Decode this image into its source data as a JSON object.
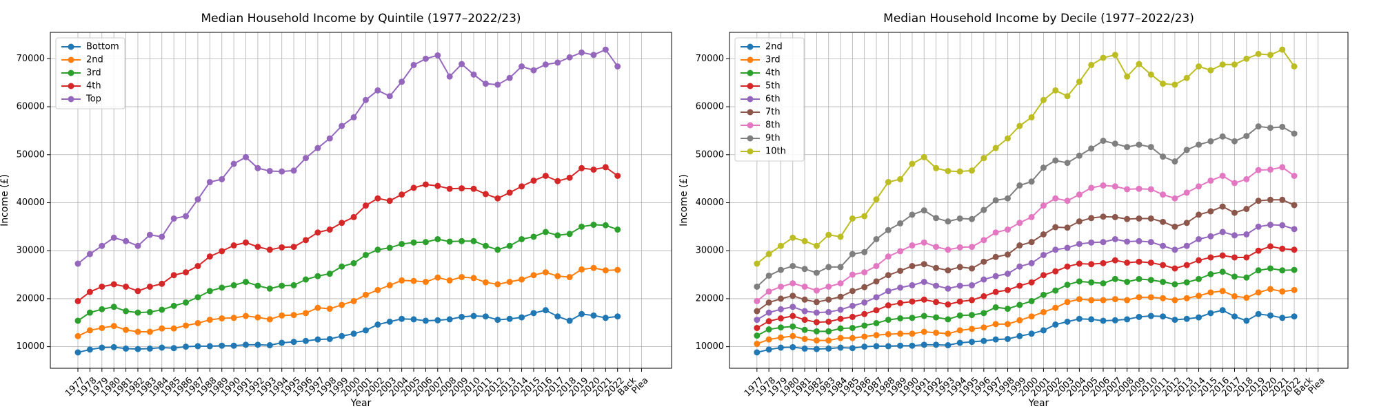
{
  "chart_data": [
    {
      "type": "line",
      "title": "Median Household Income by Quintile (1977–2022/23)",
      "xlabel": "Year",
      "ylabel": "Income (£)",
      "categories": [
        "1977",
        "1978",
        "1979",
        "1980",
        "1981",
        "1982",
        "1983",
        "1984",
        "1985",
        "1986",
        "1987",
        "1988",
        "1989",
        "1990",
        "1991",
        "1992",
        "1993",
        "1994",
        "1995",
        "1996",
        "1997",
        "1998",
        "1999",
        "2000",
        "2001",
        "2002",
        "2003",
        "2004",
        "2005",
        "2006",
        "2007",
        "2008",
        "2009",
        "2010",
        "2011",
        "2012",
        "2013",
        "2014",
        "2015",
        "2016",
        "2017",
        "2018",
        "2019",
        "2020",
        "2021",
        "2022",
        "Back",
        "Plea"
      ],
      "ylim": [
        5500,
        75500
      ],
      "yticks": [
        10000,
        20000,
        30000,
        40000,
        50000,
        60000,
        70000
      ],
      "grid": true,
      "legend": "upper left",
      "series": [
        {
          "name": "Bottom",
          "color": "#1f77b4",
          "values": [
            8800,
            9400,
            9800,
            9900,
            9600,
            9500,
            9600,
            9800,
            9700,
            10000,
            10100,
            10100,
            10200,
            10200,
            10400,
            10400,
            10300,
            10800,
            11000,
            11200,
            11500,
            11600,
            12200,
            12700,
            13400,
            14600,
            15200,
            15800,
            15700,
            15400,
            15500,
            15700,
            16200,
            16400,
            16300,
            15600,
            15800,
            16100,
            17000,
            17600,
            16300,
            15400,
            16800,
            16500,
            16000,
            16300,
            null,
            null
          ]
        },
        {
          "name": "2nd",
          "color": "#ff7f0e",
          "values": [
            12200,
            13400,
            13900,
            14300,
            13500,
            13100,
            13100,
            13800,
            13800,
            14400,
            14900,
            15600,
            15900,
            16000,
            16400,
            16100,
            15700,
            16500,
            16600,
            17000,
            18100,
            17900,
            18700,
            19500,
            20800,
            21800,
            22800,
            23800,
            23700,
            23500,
            24400,
            23800,
            24500,
            24300,
            23400,
            23000,
            23500,
            24000,
            24900,
            25500,
            24700,
            24500,
            26100,
            26400,
            25900,
            26000,
            null,
            null
          ]
        },
        {
          "name": "3rd",
          "color": "#2ca02c",
          "values": [
            15400,
            17100,
            17800,
            18300,
            17400,
            17100,
            17200,
            17700,
            18500,
            19200,
            20300,
            21600,
            22300,
            22800,
            23500,
            22700,
            22100,
            22700,
            22800,
            24000,
            24700,
            25200,
            26700,
            27400,
            29100,
            30200,
            30600,
            31400,
            31700,
            31800,
            32400,
            31900,
            32000,
            32000,
            31000,
            30200,
            31000,
            32400,
            32900,
            33900,
            33200,
            33500,
            35000,
            35400,
            35300,
            34400,
            null,
            null
          ]
        },
        {
          "name": "4th",
          "color": "#d62728",
          "values": [
            19500,
            21400,
            22500,
            23000,
            22500,
            21600,
            22500,
            23100,
            24900,
            25500,
            26800,
            28800,
            29900,
            31100,
            31700,
            30800,
            30200,
            30700,
            30800,
            32200,
            33800,
            34400,
            35800,
            37000,
            39400,
            40900,
            40400,
            41700,
            43100,
            43800,
            43500,
            42900,
            43000,
            42900,
            41800,
            40900,
            42100,
            43400,
            44600,
            45600,
            44500,
            45200,
            47200,
            46900,
            47400,
            45600,
            null,
            null
          ]
        },
        {
          "name": "Top",
          "color": "#9467bd",
          "values": [
            27300,
            29300,
            31000,
            32700,
            32000,
            31000,
            33300,
            32900,
            36700,
            37200,
            40700,
            44300,
            44900,
            48100,
            49500,
            47200,
            46600,
            46500,
            46700,
            49300,
            51400,
            53400,
            56000,
            57800,
            61400,
            63400,
            62200,
            65200,
            68700,
            70000,
            70700,
            66300,
            68900,
            66700,
            64800,
            64600,
            66000,
            68400,
            67600,
            68800,
            69200,
            70300,
            71300,
            70800,
            71900,
            68400,
            null,
            null
          ]
        }
      ]
    },
    {
      "type": "line",
      "title": "Median Household Income by Decile (1977–2022/23)",
      "xlabel": "Year",
      "ylabel": "Income (£)",
      "categories": [
        "1977",
        "1978",
        "1979",
        "1980",
        "1981",
        "1982",
        "1983",
        "1984",
        "1985",
        "1986",
        "1987",
        "1988",
        "1989",
        "1990",
        "1991",
        "1992",
        "1993",
        "1994",
        "1995",
        "1996",
        "1997",
        "1998",
        "1999",
        "2000",
        "2001",
        "2002",
        "2003",
        "2004",
        "2005",
        "2006",
        "2007",
        "2008",
        "2009",
        "2010",
        "2011",
        "2012",
        "2013",
        "2014",
        "2015",
        "2016",
        "2017",
        "2018",
        "2019",
        "2020",
        "2021",
        "2022",
        "Back",
        "Plea"
      ],
      "ylim": [
        5500,
        75500
      ],
      "yticks": [
        10000,
        20000,
        30000,
        40000,
        50000,
        60000,
        70000
      ],
      "grid": true,
      "legend": "upper left",
      "series": [
        {
          "name": "2nd",
          "color": "#1f77b4",
          "values": [
            8800,
            9400,
            9800,
            9900,
            9600,
            9500,
            9600,
            9800,
            9700,
            10000,
            10100,
            10100,
            10200,
            10200,
            10400,
            10400,
            10300,
            10800,
            11000,
            11200,
            11500,
            11600,
            12200,
            12700,
            13400,
            14600,
            15200,
            15800,
            15700,
            15400,
            15500,
            15700,
            16200,
            16400,
            16300,
            15600,
            15800,
            16100,
            17000,
            17600,
            16300,
            15400,
            16800,
            16500,
            16000,
            16300,
            null,
            null
          ]
        },
        {
          "name": "3rd",
          "color": "#ff7f0e",
          "values": [
            10600,
            11500,
            11900,
            12200,
            11600,
            11300,
            11300,
            11800,
            11800,
            12100,
            12400,
            12600,
            12700,
            12700,
            13100,
            12900,
            12700,
            13400,
            13700,
            14000,
            14700,
            14700,
            15500,
            16300,
            17200,
            18100,
            19300,
            19900,
            19700,
            19700,
            19900,
            19700,
            20300,
            20300,
            20100,
            19700,
            20100,
            20600,
            21300,
            21600,
            20500,
            20200,
            21300,
            22000,
            21500,
            21800,
            null,
            null
          ]
        },
        {
          "name": "4th",
          "color": "#2ca02c",
          "values": [
            12300,
            13600,
            14000,
            14200,
            13500,
            13200,
            13200,
            13800,
            13900,
            14400,
            14900,
            15600,
            15900,
            16000,
            16400,
            16100,
            15700,
            16500,
            16600,
            17000,
            18200,
            17900,
            18700,
            19500,
            20800,
            21700,
            22900,
            23600,
            23400,
            23200,
            24100,
            23500,
            24100,
            23900,
            23500,
            23000,
            23400,
            24100,
            25100,
            25600,
            24600,
            24400,
            25900,
            26300,
            25900,
            26000,
            null,
            null
          ]
        },
        {
          "name": "5th",
          "color": "#d62728",
          "values": [
            13900,
            15300,
            15900,
            16400,
            15600,
            15100,
            15200,
            15800,
            16200,
            16800,
            17600,
            18600,
            19100,
            19400,
            19800,
            19300,
            18800,
            19400,
            19700,
            20500,
            21400,
            21800,
            22700,
            23400,
            24900,
            25700,
            26700,
            27300,
            27200,
            27400,
            28000,
            27500,
            27700,
            27500,
            27000,
            26300,
            27000,
            28000,
            28600,
            29000,
            28600,
            28600,
            30000,
            30900,
            30400,
            30200,
            null,
            null
          ]
        },
        {
          "name": "6th",
          "color": "#9467bd",
          "values": [
            15600,
            17100,
            17800,
            18300,
            17400,
            17100,
            17200,
            17700,
            18500,
            19200,
            20300,
            21600,
            22300,
            22800,
            23500,
            22700,
            22100,
            22700,
            22800,
            24000,
            24700,
            25200,
            26700,
            27400,
            29100,
            30200,
            30600,
            31400,
            31700,
            31800,
            32400,
            31900,
            32000,
            31800,
            31000,
            30200,
            31000,
            32400,
            33000,
            33900,
            33200,
            33400,
            35000,
            35400,
            35300,
            34500,
            null,
            null
          ]
        },
        {
          "name": "7th",
          "color": "#8c564b",
          "values": [
            17400,
            19200,
            20000,
            20600,
            19800,
            19300,
            19800,
            20400,
            21600,
            22400,
            23600,
            24900,
            25800,
            26800,
            27200,
            26400,
            25900,
            26600,
            26300,
            27700,
            28700,
            29200,
            31100,
            31800,
            33400,
            34900,
            34800,
            36100,
            36800,
            37100,
            37000,
            36600,
            36700,
            36700,
            36000,
            35000,
            35800,
            37500,
            38200,
            39200,
            37900,
            38700,
            40400,
            40600,
            40600,
            39500,
            null,
            null
          ]
        },
        {
          "name": "8th",
          "color": "#e377c2",
          "values": [
            19500,
            21500,
            22500,
            23200,
            22500,
            21700,
            22500,
            23200,
            25000,
            25500,
            26800,
            28800,
            29900,
            31100,
            31700,
            30800,
            30200,
            30700,
            30800,
            32200,
            33800,
            34400,
            35800,
            37000,
            39400,
            40900,
            40400,
            41700,
            43100,
            43600,
            43400,
            42800,
            42900,
            42800,
            41700,
            40900,
            42100,
            43400,
            44600,
            45600,
            44100,
            44900,
            46800,
            46900,
            47400,
            45600,
            null,
            null
          ]
        },
        {
          "name": "9th",
          "color": "#7f7f7f",
          "values": [
            22500,
            24800,
            26000,
            26800,
            26200,
            25400,
            26600,
            26600,
            29300,
            29700,
            32400,
            34300,
            35700,
            37500,
            38400,
            36800,
            36100,
            36700,
            36600,
            38500,
            40500,
            40900,
            43600,
            44400,
            47300,
            48800,
            48300,
            49800,
            51300,
            52900,
            52300,
            51600,
            52100,
            51600,
            49600,
            48600,
            51000,
            52100,
            52800,
            53800,
            52800,
            53900,
            55900,
            55600,
            55800,
            54400,
            null,
            null
          ]
        },
        {
          "name": "10th",
          "color": "#bcbd22",
          "values": [
            27300,
            29300,
            31000,
            32700,
            32000,
            31000,
            33300,
            32900,
            36700,
            37200,
            40700,
            44300,
            44900,
            48100,
            49500,
            47200,
            46600,
            46500,
            46700,
            49300,
            51400,
            53400,
            56000,
            57800,
            61400,
            63400,
            62200,
            65200,
            68700,
            70200,
            70800,
            66300,
            68900,
            66700,
            64800,
            64600,
            66000,
            68400,
            67600,
            68800,
            68800,
            70000,
            71000,
            70800,
            71900,
            68400,
            null,
            null
          ]
        }
      ]
    }
  ]
}
